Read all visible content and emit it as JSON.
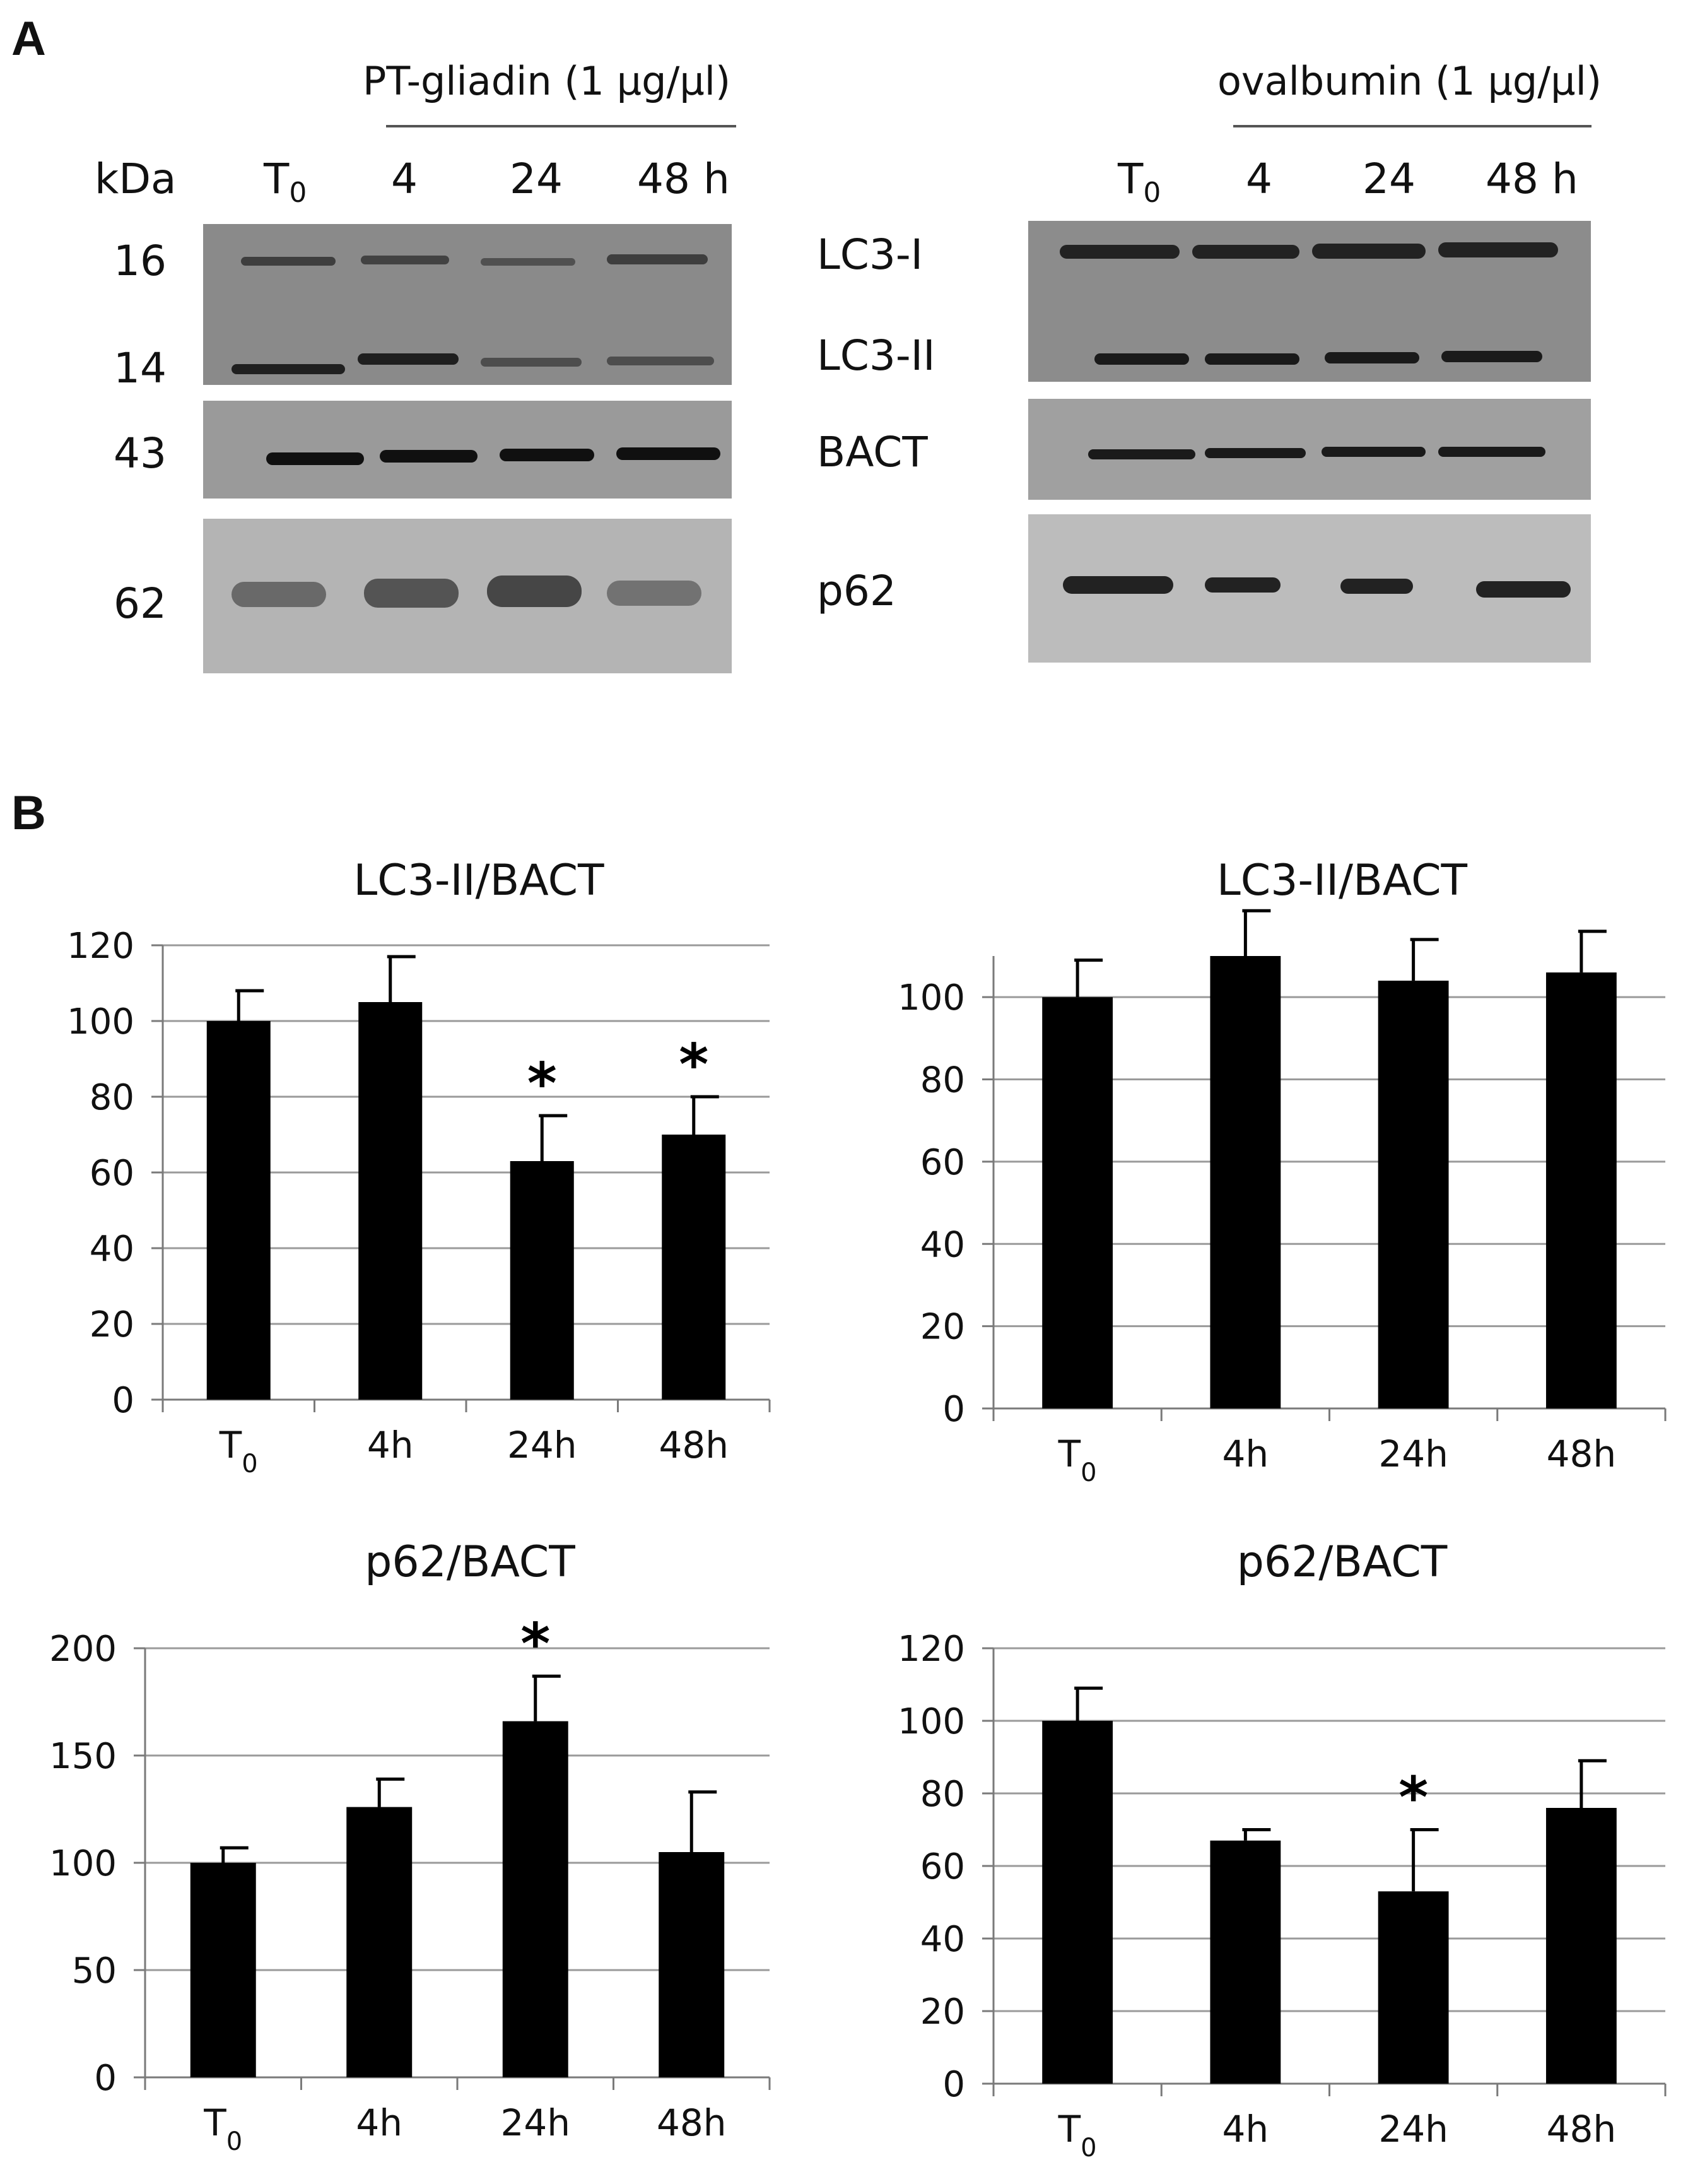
{
  "panels": {
    "a": "A",
    "b": "B"
  },
  "blots": {
    "left": {
      "treatment": "PT-gliadin (1 µg/µl)",
      "kda_header": "kDa",
      "lanes": [
        "T",
        "4",
        "24",
        "48 h"
      ],
      "lane_subscript": "0",
      "markers": [
        "16",
        "14",
        "43",
        "62"
      ]
    },
    "right": {
      "treatment": "ovalbumin (1 µg/µl)",
      "lanes": [
        "T",
        "4",
        "24",
        "48 h"
      ],
      "lane_subscript": "0"
    },
    "band_labels": [
      "LC3-I",
      "LC3-II",
      "BACT",
      "p62"
    ]
  },
  "chart_data": [
    {
      "type": "bar",
      "title": "LC3-II/BACT",
      "categories": [
        "T",
        "4h",
        "24h",
        "48h"
      ],
      "category_subscripts": [
        "0",
        "",
        "",
        ""
      ],
      "values": [
        100,
        105,
        63,
        70
      ],
      "errors": [
        8,
        12,
        12,
        10
      ],
      "significance": [
        "",
        "",
        "*",
        "*"
      ],
      "ylim": [
        0,
        120
      ],
      "yticks": [
        0,
        20,
        40,
        60,
        80,
        100,
        120
      ],
      "grid": true
    },
    {
      "type": "bar",
      "title": "LC3-II/BACT",
      "categories": [
        "T",
        "4h",
        "24h",
        "48h"
      ],
      "category_subscripts": [
        "0",
        "",
        "",
        ""
      ],
      "values": [
        100,
        110,
        104,
        106
      ],
      "errors": [
        9,
        11,
        10,
        10
      ],
      "significance": [
        "",
        "",
        "",
        ""
      ],
      "ylim": [
        0,
        110
      ],
      "yticks": [
        0,
        20,
        40,
        60,
        80,
        100
      ],
      "grid": true
    },
    {
      "type": "bar",
      "title": "p62/BACT",
      "categories": [
        "T",
        "4h",
        "24h",
        "48h"
      ],
      "category_subscripts": [
        "0",
        "",
        "",
        ""
      ],
      "values": [
        100,
        126,
        166,
        105
      ],
      "errors": [
        7,
        13,
        21,
        28
      ],
      "significance": [
        "",
        "",
        "*",
        ""
      ],
      "ylim": [
        0,
        200
      ],
      "yticks": [
        0,
        50,
        100,
        150,
        200
      ],
      "grid": true
    },
    {
      "type": "bar",
      "title": "p62/BACT",
      "categories": [
        "T",
        "4h",
        "24h",
        "48h"
      ],
      "category_subscripts": [
        "0",
        "",
        "",
        ""
      ],
      "values": [
        100,
        67,
        53,
        76
      ],
      "errors": [
        9,
        3,
        17,
        13
      ],
      "significance": [
        "",
        "",
        "*",
        ""
      ],
      "ylim": [
        0,
        120
      ],
      "yticks": [
        0,
        20,
        40,
        60,
        80,
        100,
        120
      ],
      "grid": true
    }
  ]
}
